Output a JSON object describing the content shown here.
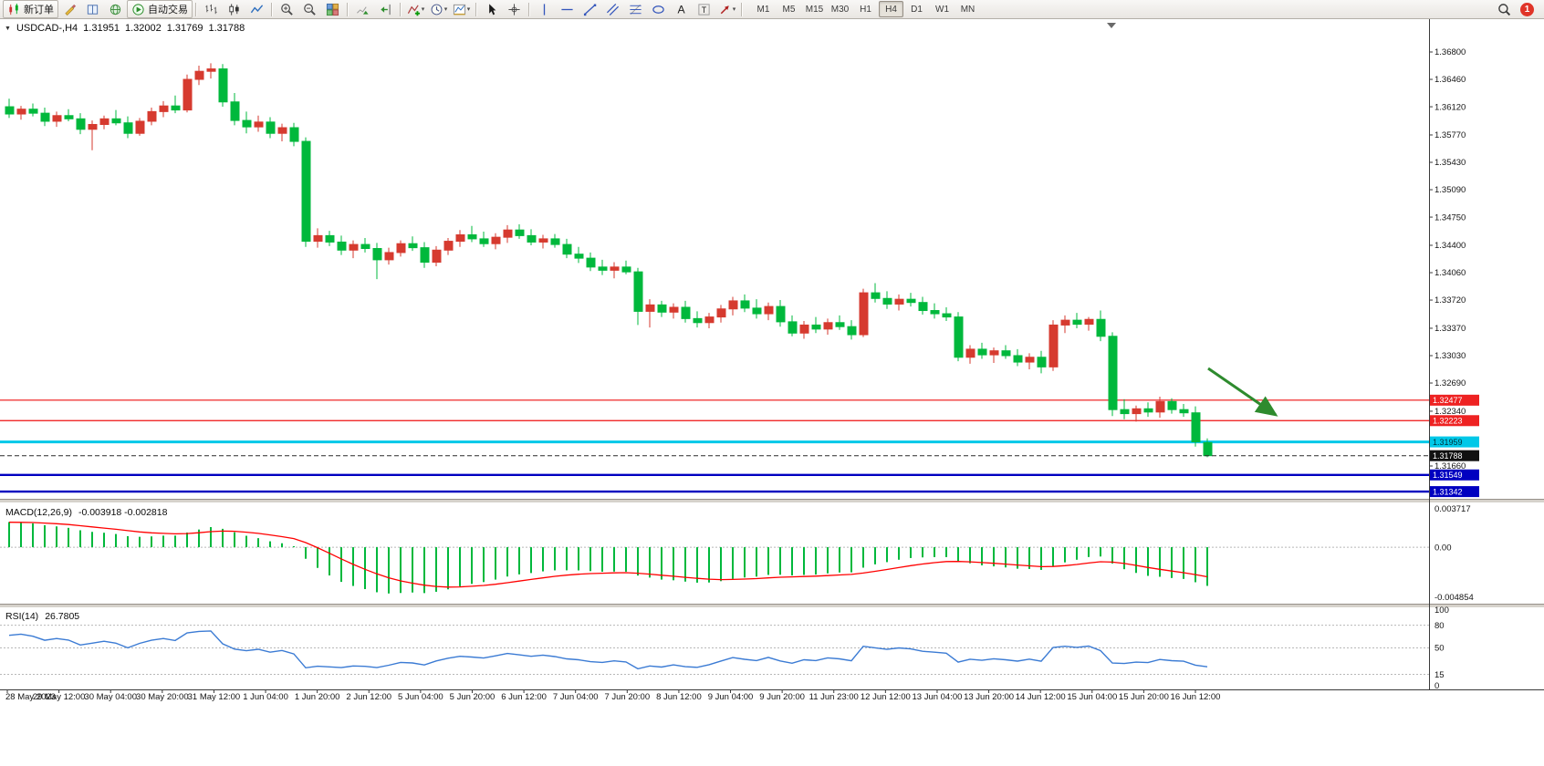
{
  "toolbar": {
    "buttons": [
      {
        "name": "new-order",
        "icon": "candles",
        "label": "新订单"
      },
      {
        "name": "metaeditor",
        "icon": "pencil"
      },
      {
        "name": "market-watch",
        "icon": "book"
      },
      {
        "name": "mql5-community",
        "icon": "globe"
      },
      {
        "name": "autotrading",
        "icon": "play",
        "label": "自动交易"
      },
      {
        "sep": true
      },
      {
        "name": "bar-chart-mode",
        "icon": "ohlcbars"
      },
      {
        "name": "candlestick-mode",
        "icon": "candle"
      },
      {
        "name": "line-chart-mode",
        "icon": "polyline"
      },
      {
        "sep": true
      },
      {
        "name": "zoom-in",
        "icon": "zoomin"
      },
      {
        "name": "zoom-out",
        "icon": "zoomout"
      },
      {
        "name": "tile-windows",
        "icon": "tiles"
      },
      {
        "sep": true
      },
      {
        "name": "auto-scroll",
        "icon": "autoscroll"
      },
      {
        "name": "chart-shift",
        "icon": "shift"
      },
      {
        "sep": true
      },
      {
        "name": "indicators",
        "icon": "indicator",
        "dropdown": true
      },
      {
        "name": "periods",
        "icon": "clock",
        "dropdown": true
      },
      {
        "name": "templates",
        "icon": "template",
        "dropdown": true
      },
      {
        "sep": true
      },
      {
        "name": "cursor",
        "icon": "cursor"
      },
      {
        "name": "crosshair",
        "icon": "crosshair"
      },
      {
        "sep": true
      },
      {
        "name": "vertical-line",
        "icon": "vline"
      },
      {
        "name": "horizontal-line",
        "icon": "hline"
      },
      {
        "name": "trendline",
        "icon": "tline"
      },
      {
        "name": "equidistant-channel",
        "icon": "channel"
      },
      {
        "name": "fibonacci-retracement",
        "icon": "fibo"
      },
      {
        "name": "ellipse-tool",
        "icon": "shapes"
      },
      {
        "name": "text-tool",
        "icon": "textA"
      },
      {
        "name": "text-label-tool",
        "icon": "textT"
      },
      {
        "name": "arrow-tool",
        "icon": "arrowmark",
        "dropdown": true
      },
      {
        "sep": true
      }
    ],
    "timeframes": [
      "M1",
      "M5",
      "M15",
      "M30",
      "H1",
      "H4",
      "D1",
      "W1",
      "MN"
    ],
    "active_timeframe": "H4",
    "buttons_right": [
      {
        "name": "search",
        "icon": "search"
      }
    ],
    "notification_count": "1"
  },
  "chart": {
    "symbol_period": "USDCAD-,H4",
    "ohlc": {
      "open": "1.31951",
      "high": "1.32002",
      "low": "1.31769",
      "close": "1.31788"
    }
  },
  "chart_data": {
    "type": "candlestick",
    "symbol": "USDCAD-",
    "timeframe": "H4",
    "bull_color": "#d63a2f",
    "bear_color": "#00b83c",
    "candles_ohlc": [
      [
        1.3612,
        1.3622,
        1.3598,
        1.3603
      ],
      [
        1.3603,
        1.3613,
        1.3596,
        1.3609
      ],
      [
        1.3609,
        1.3616,
        1.36,
        1.3604
      ],
      [
        1.3604,
        1.3611,
        1.3588,
        1.3594
      ],
      [
        1.3594,
        1.3606,
        1.3587,
        1.3601
      ],
      [
        1.3601,
        1.3609,
        1.3594,
        1.3597
      ],
      [
        1.3597,
        1.3604,
        1.3578,
        1.3584
      ],
      [
        1.3584,
        1.3595,
        1.3558,
        1.359
      ],
      [
        1.359,
        1.3601,
        1.3584,
        1.3597
      ],
      [
        1.3597,
        1.3608,
        1.3589,
        1.3592
      ],
      [
        1.3592,
        1.36,
        1.3573,
        1.3579
      ],
      [
        1.3579,
        1.3598,
        1.3576,
        1.3594
      ],
      [
        1.3594,
        1.3611,
        1.3589,
        1.3606
      ],
      [
        1.3606,
        1.3619,
        1.3599,
        1.3613
      ],
      [
        1.3613,
        1.3626,
        1.3604,
        1.3608
      ],
      [
        1.3608,
        1.3652,
        1.3605,
        1.3646
      ],
      [
        1.3646,
        1.3663,
        1.3639,
        1.3656
      ],
      [
        1.3656,
        1.3666,
        1.3647,
        1.3659
      ],
      [
        1.3659,
        1.3665,
        1.3612,
        1.3618
      ],
      [
        1.3618,
        1.3629,
        1.3589,
        1.3595
      ],
      [
        1.3595,
        1.3606,
        1.3579,
        1.3587
      ],
      [
        1.3587,
        1.3601,
        1.3581,
        1.3593
      ],
      [
        1.3593,
        1.3599,
        1.3573,
        1.3579
      ],
      [
        1.3579,
        1.3591,
        1.3569,
        1.3586
      ],
      [
        1.3586,
        1.3592,
        1.3563,
        1.3569
      ],
      [
        1.3569,
        1.3574,
        1.3438,
        1.3445
      ],
      [
        1.3445,
        1.3461,
        1.3437,
        1.3452
      ],
      [
        1.3452,
        1.3458,
        1.3439,
        1.3444
      ],
      [
        1.3444,
        1.3452,
        1.3428,
        1.3434
      ],
      [
        1.3434,
        1.3446,
        1.3424,
        1.3441
      ],
      [
        1.3441,
        1.3449,
        1.3431,
        1.3436
      ],
      [
        1.3436,
        1.3443,
        1.3398,
        1.3422
      ],
      [
        1.3422,
        1.3437,
        1.3416,
        1.3431
      ],
      [
        1.3431,
        1.3446,
        1.3426,
        1.3442
      ],
      [
        1.3442,
        1.3451,
        1.3433,
        1.3437
      ],
      [
        1.3437,
        1.3444,
        1.3412,
        1.3419
      ],
      [
        1.3419,
        1.3439,
        1.3414,
        1.3434
      ],
      [
        1.3434,
        1.3449,
        1.3428,
        1.3445
      ],
      [
        1.3445,
        1.3459,
        1.3438,
        1.3453
      ],
      [
        1.3453,
        1.3464,
        1.3444,
        1.3448
      ],
      [
        1.3448,
        1.3457,
        1.3438,
        1.3442
      ],
      [
        1.3442,
        1.3455,
        1.3435,
        1.345
      ],
      [
        1.345,
        1.3465,
        1.3443,
        1.3459
      ],
      [
        1.3459,
        1.3466,
        1.3448,
        1.3452
      ],
      [
        1.3452,
        1.346,
        1.344,
        1.3444
      ],
      [
        1.3444,
        1.3453,
        1.3436,
        1.3448
      ],
      [
        1.3448,
        1.3454,
        1.3437,
        1.3441
      ],
      [
        1.3441,
        1.3448,
        1.3424,
        1.3429
      ],
      [
        1.3429,
        1.3438,
        1.3418,
        1.3424
      ],
      [
        1.3424,
        1.3431,
        1.3408,
        1.3413
      ],
      [
        1.3413,
        1.3422,
        1.3403,
        1.3409
      ],
      [
        1.3409,
        1.3419,
        1.3399,
        1.3413
      ],
      [
        1.3413,
        1.3421,
        1.3404,
        1.3407
      ],
      [
        1.3407,
        1.3412,
        1.3341,
        1.3358
      ],
      [
        1.3358,
        1.3373,
        1.3338,
        1.3366
      ],
      [
        1.3366,
        1.3371,
        1.3351,
        1.3357
      ],
      [
        1.3357,
        1.3368,
        1.3349,
        1.3363
      ],
      [
        1.3363,
        1.3371,
        1.3344,
        1.3349
      ],
      [
        1.3349,
        1.3358,
        1.3338,
        1.3344
      ],
      [
        1.3344,
        1.3356,
        1.3337,
        1.3351
      ],
      [
        1.3351,
        1.3366,
        1.3344,
        1.3361
      ],
      [
        1.3361,
        1.3376,
        1.3353,
        1.3371
      ],
      [
        1.3371,
        1.3379,
        1.3357,
        1.3362
      ],
      [
        1.3362,
        1.3373,
        1.3349,
        1.3355
      ],
      [
        1.3355,
        1.3369,
        1.3347,
        1.3364
      ],
      [
        1.3364,
        1.3372,
        1.3339,
        1.3345
      ],
      [
        1.3345,
        1.3353,
        1.3327,
        1.3331
      ],
      [
        1.3331,
        1.3346,
        1.3324,
        1.3341
      ],
      [
        1.3341,
        1.3351,
        1.3331,
        1.3336
      ],
      [
        1.3336,
        1.3349,
        1.3329,
        1.3344
      ],
      [
        1.3344,
        1.3353,
        1.3335,
        1.3339
      ],
      [
        1.3339,
        1.3347,
        1.3323,
        1.3329
      ],
      [
        1.3329,
        1.3386,
        1.3326,
        1.3381
      ],
      [
        1.3381,
        1.3393,
        1.3369,
        1.3374
      ],
      [
        1.3374,
        1.3383,
        1.3361,
        1.3367
      ],
      [
        1.3367,
        1.3379,
        1.3359,
        1.3373
      ],
      [
        1.3373,
        1.3381,
        1.3364,
        1.3369
      ],
      [
        1.3369,
        1.3376,
        1.3354,
        1.3359
      ],
      [
        1.3359,
        1.3368,
        1.3349,
        1.3355
      ],
      [
        1.3355,
        1.3363,
        1.3346,
        1.3351
      ],
      [
        1.3351,
        1.3357,
        1.3296,
        1.3301
      ],
      [
        1.3301,
        1.3316,
        1.3293,
        1.3311
      ],
      [
        1.3311,
        1.3319,
        1.3299,
        1.3304
      ],
      [
        1.3304,
        1.3313,
        1.3294,
        1.3309
      ],
      [
        1.3309,
        1.3316,
        1.3299,
        1.3303
      ],
      [
        1.3303,
        1.3311,
        1.329,
        1.3295
      ],
      [
        1.3295,
        1.3306,
        1.3286,
        1.3301
      ],
      [
        1.3301,
        1.3309,
        1.3281,
        1.3289
      ],
      [
        1.3289,
        1.3347,
        1.3284,
        1.3341
      ],
      [
        1.3341,
        1.3353,
        1.3331,
        1.3347
      ],
      [
        1.3347,
        1.3356,
        1.3337,
        1.3342
      ],
      [
        1.3342,
        1.3351,
        1.3334,
        1.3348
      ],
      [
        1.3348,
        1.3359,
        1.3321,
        1.3327
      ],
      [
        1.3327,
        1.3332,
        1.3228,
        1.3236
      ],
      [
        1.3236,
        1.3249,
        1.3224,
        1.3231
      ],
      [
        1.3231,
        1.3241,
        1.3221,
        1.3237
      ],
      [
        1.3237,
        1.3245,
        1.3227,
        1.3233
      ],
      [
        1.3233,
        1.3252,
        1.3226,
        1.3246
      ],
      [
        1.3246,
        1.325,
        1.3231,
        1.3236
      ],
      [
        1.3236,
        1.3243,
        1.3227,
        1.3232
      ],
      [
        1.3232,
        1.324,
        1.319,
        1.3196
      ],
      [
        1.31951,
        1.32002,
        1.31769,
        1.31788
      ]
    ],
    "price_axis_ticks": [
      "1.36800",
      "1.36460",
      "1.36120",
      "1.35770",
      "1.35430",
      "1.35090",
      "1.34750",
      "1.34400",
      "1.34060",
      "1.33720",
      "1.33370",
      "1.33030",
      "1.32690",
      "1.32340",
      "1.31660"
    ],
    "hlines": [
      {
        "value": 1.32477,
        "label": "1.32477",
        "color": "#ee1111",
        "bg": "#ee2222",
        "text": "#ffffff",
        "width": 1.2,
        "dash": false
      },
      {
        "value": 1.32223,
        "label": "1.32223",
        "color": "#ee1111",
        "bg": "#ee2222",
        "text": "#ffffff",
        "width": 1.2,
        "dash": false
      },
      {
        "value": 1.31959,
        "label": "1.31959",
        "color": "#00c8e8",
        "bg": "#00c8e8",
        "text": "#00323c",
        "width": 3,
        "dash": false
      },
      {
        "value": 1.31788,
        "label": "1.31788",
        "color": "#2a2a2a",
        "bg": "#111111",
        "text": "#ffffff",
        "width": 1,
        "dash": true,
        "role": "current-price"
      },
      {
        "value": 1.31549,
        "label": "1.31549",
        "color": "#0000c0",
        "bg": "#0000c0",
        "text": "#ffffff",
        "width": 2.4,
        "dash": false
      },
      {
        "value": 1.31342,
        "label": "1.31342",
        "color": "#0000c0",
        "bg": "#0000c0",
        "text": "#ffffff",
        "width": 2.4,
        "dash": false
      }
    ],
    "indicators": {
      "macd": {
        "label": "MACD(12,26,9)",
        "values_text": "-0.003918 -0.002818",
        "params": [
          12,
          26,
          9
        ],
        "histogram_color": "#00b83c",
        "signal_color": "#ff0000",
        "axis_max": 0.003717,
        "axis_min": -0.004854,
        "axis_labels": [
          "0.003717",
          "0.00",
          "-0.004854"
        ]
      },
      "rsi": {
        "label": "RSI(14)",
        "value_text": "26.7805",
        "period": 14,
        "line_color": "#3b7bd4",
        "levels": [
          80,
          50,
          15
        ],
        "axis_labels": [
          {
            "v": 100,
            "t": "100"
          },
          {
            "v": 80,
            "t": "80"
          },
          {
            "v": 50,
            "t": "50"
          },
          {
            "v": 15,
            "t": "15"
          },
          {
            "v": 0,
            "t": "0"
          }
        ]
      }
    },
    "time_axis": [
      "28 May 2023",
      "29 May 12:00",
      "30 May 04:00",
      "30 May 20:00",
      "31 May 12:00",
      "1 Jun 04:00",
      "1 Jun 20:00",
      "2 Jun 12:00",
      "5 Jun 04:00",
      "5 Jun 20:00",
      "6 Jun 12:00",
      "7 Jun 04:00",
      "7 Jun 20:00",
      "8 Jun 12:00",
      "9 Jun 04:00",
      "9 Jun 20:00",
      "11 Jun 23:00",
      "12 Jun 12:00",
      "13 Jun 04:00",
      "13 Jun 20:00",
      "14 Jun 12:00",
      "15 Jun 04:00",
      "15 Jun 20:00",
      "16 Jun 12:00"
    ],
    "annotation": {
      "type": "arrow",
      "direction": "down-right",
      "color": "#2e8b2e"
    }
  }
}
